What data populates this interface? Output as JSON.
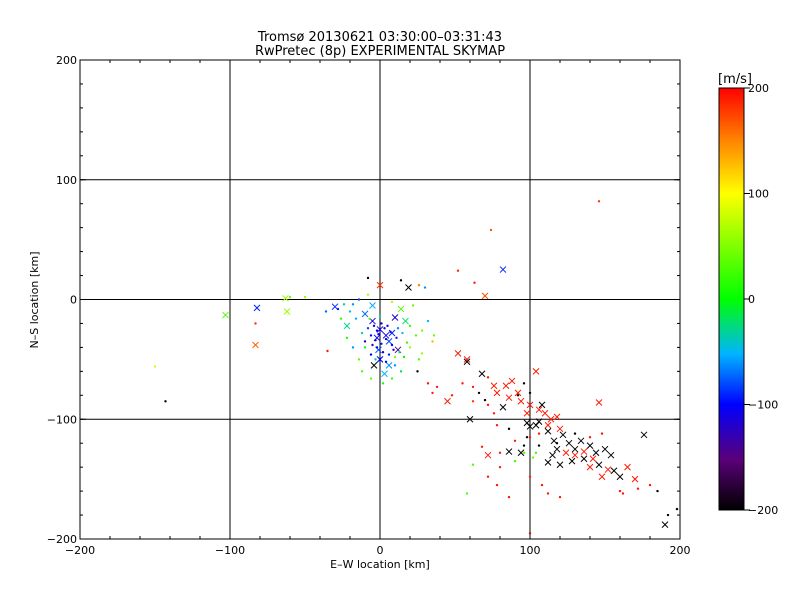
{
  "chart_data": {
    "type": "scatter",
    "title": "Tromsø 20130621 03:30:00–03:31:43",
    "subtitle": "RwPretec (8p) EXPERIMENTAL SKYMAP",
    "xlabel": "E–W location [km]",
    "ylabel": "N–S location [km]",
    "xlim": [
      -200,
      200
    ],
    "ylim": [
      -200,
      200
    ],
    "xticks": [
      -200,
      -100,
      0,
      100,
      200
    ],
    "yticks": [
      -200,
      -100,
      0,
      100,
      200
    ],
    "grid_lines": [
      -100,
      0,
      100
    ],
    "colorbar": {
      "label": "[m/s]",
      "range": [
        -200,
        200
      ],
      "ticks": [
        -200,
        -100,
        0,
        100,
        200
      ],
      "colormap": "black-purple-blue-cyan-green-yellow-red"
    },
    "markers": {
      "cross": "×",
      "dot": "·"
    },
    "points": [
      [
        146,
        82,
        180,
        "dot"
      ],
      [
        74,
        58,
        170,
        "dot"
      ],
      [
        82,
        25,
        -90,
        "cross"
      ],
      [
        52,
        24,
        180,
        "dot"
      ],
      [
        63,
        14,
        190,
        "dot"
      ],
      [
        70,
        3,
        170,
        "cross"
      ],
      [
        -8,
        18,
        -200,
        "dot"
      ],
      [
        0,
        12,
        180,
        "cross"
      ],
      [
        14,
        16,
        -200,
        "dot"
      ],
      [
        19,
        10,
        -200,
        "cross"
      ],
      [
        26,
        12,
        150,
        "dot"
      ],
      [
        30,
        10,
        -60,
        "dot"
      ],
      [
        -60,
        2,
        40,
        "dot"
      ],
      [
        -50,
        2,
        60,
        "dot"
      ],
      [
        -63,
        1,
        60,
        "cross"
      ],
      [
        -82,
        -7,
        -90,
        "cross"
      ],
      [
        -62,
        -10,
        60,
        "cross"
      ],
      [
        -103,
        -13,
        30,
        "cross"
      ],
      [
        -83,
        -20,
        180,
        "dot"
      ],
      [
        -30,
        -6,
        -90,
        "cross"
      ],
      [
        -22,
        -22,
        -30,
        "cross"
      ],
      [
        -83,
        -38,
        160,
        "cross"
      ],
      [
        -35,
        -43,
        190,
        "dot"
      ],
      [
        -150,
        -56,
        80,
        "dot"
      ],
      [
        -143,
        -85,
        -200,
        "dot"
      ],
      [
        -10,
        -12,
        -70,
        "cross"
      ],
      [
        -5,
        -5,
        -50,
        "cross"
      ],
      [
        8,
        -2,
        70,
        "dot"
      ],
      [
        14,
        -8,
        30,
        "cross"
      ],
      [
        22,
        -5,
        40,
        "dot"
      ],
      [
        17,
        -18,
        -20,
        "cross"
      ],
      [
        -5,
        -18,
        -110,
        "cross"
      ],
      [
        0,
        -25,
        -110,
        "cross"
      ],
      [
        4,
        -30,
        -110,
        "cross"
      ],
      [
        -2,
        -32,
        -100,
        "cross"
      ],
      [
        8,
        -28,
        -90,
        "cross"
      ],
      [
        10,
        -15,
        -110,
        "cross"
      ],
      [
        6,
        -35,
        -80,
        "cross"
      ],
      [
        -1,
        -42,
        -80,
        "cross"
      ],
      [
        -4,
        -55,
        -200,
        "cross"
      ],
      [
        0,
        -50,
        -100,
        "cross"
      ],
      [
        6,
        -55,
        -60,
        "cross"
      ],
      [
        3,
        -62,
        -50,
        "cross"
      ],
      [
        10,
        -48,
        50,
        "dot"
      ],
      [
        28,
        -45,
        60,
        "dot"
      ],
      [
        35,
        -35,
        130,
        "dot"
      ],
      [
        12,
        -42,
        -140,
        "cross"
      ],
      [
        -10,
        -35,
        -120,
        "dot"
      ],
      [
        -5,
        -38,
        -130,
        "dot"
      ],
      [
        2,
        -70,
        10,
        "dot"
      ],
      [
        -4,
        -22,
        -110,
        "dot"
      ],
      [
        -2,
        -26,
        -100,
        "dot"
      ],
      [
        1,
        -20,
        -110,
        "dot"
      ],
      [
        3,
        -24,
        -120,
        "dot"
      ],
      [
        5,
        -22,
        -100,
        "dot"
      ],
      [
        7,
        -27,
        -110,
        "dot"
      ],
      [
        -6,
        -30,
        -100,
        "dot"
      ],
      [
        -3,
        -34,
        -110,
        "dot"
      ],
      [
        1,
        -37,
        -90,
        "dot"
      ],
      [
        4,
        -33,
        -100,
        "dot"
      ],
      [
        8,
        -38,
        -110,
        "dot"
      ],
      [
        11,
        -32,
        -90,
        "dot"
      ],
      [
        -1,
        -29,
        -100,
        "dot"
      ],
      [
        2,
        -44,
        -110,
        "dot"
      ],
      [
        6,
        -46,
        -90,
        "dot"
      ],
      [
        -6,
        -46,
        -100,
        "dot"
      ],
      [
        12,
        -24,
        -60,
        "dot"
      ],
      [
        15,
        -28,
        -50,
        "dot"
      ],
      [
        -8,
        -24,
        -80,
        "dot"
      ],
      [
        18,
        -36,
        20,
        "dot"
      ],
      [
        -12,
        -28,
        -30,
        "dot"
      ],
      [
        0,
        -14,
        -30,
        "dot"
      ],
      [
        -2,
        -40,
        -100,
        "dot"
      ],
      [
        9,
        -42,
        -120,
        "dot"
      ],
      [
        13,
        -44,
        -20,
        "dot"
      ],
      [
        -3,
        -50,
        -40,
        "dot"
      ],
      [
        4,
        -52,
        -100,
        "dot"
      ],
      [
        10,
        -55,
        -60,
        "dot"
      ],
      [
        16,
        -48,
        0,
        "dot"
      ],
      [
        -7,
        -16,
        40,
        "dot"
      ],
      [
        20,
        -22,
        20,
        "dot"
      ],
      [
        24,
        -30,
        30,
        "dot"
      ],
      [
        -10,
        -40,
        0,
        "dot"
      ],
      [
        52,
        -45,
        190,
        "cross"
      ],
      [
        58,
        -50,
        190,
        "cross"
      ],
      [
        58,
        -52,
        -200,
        "cross"
      ],
      [
        68,
        -62,
        -200,
        "cross"
      ],
      [
        72,
        -65,
        190,
        "dot"
      ],
      [
        76,
        -72,
        190,
        "cross"
      ],
      [
        84,
        -72,
        190,
        "cross"
      ],
      [
        78,
        -78,
        190,
        "cross"
      ],
      [
        88,
        -68,
        190,
        "cross"
      ],
      [
        92,
        -78,
        190,
        "cross"
      ],
      [
        86,
        -82,
        190,
        "cross"
      ],
      [
        94,
        -85,
        190,
        "cross"
      ],
      [
        100,
        -88,
        190,
        "cross"
      ],
      [
        104,
        -60,
        190,
        "cross"
      ],
      [
        106,
        -92,
        190,
        "cross"
      ],
      [
        98,
        -95,
        190,
        "cross"
      ],
      [
        110,
        -95,
        190,
        "cross"
      ],
      [
        114,
        -100,
        190,
        "cross"
      ],
      [
        118,
        -98,
        190,
        "cross"
      ],
      [
        112,
        -105,
        190,
        "cross"
      ],
      [
        120,
        -108,
        190,
        "cross"
      ],
      [
        96,
        -70,
        -200,
        "dot"
      ],
      [
        100,
        -78,
        -200,
        "dot"
      ],
      [
        108,
        -88,
        -200,
        "cross"
      ],
      [
        106,
        -102,
        -200,
        "cross"
      ],
      [
        98,
        -103,
        -200,
        "cross"
      ],
      [
        100,
        -106,
        -200,
        "cross"
      ],
      [
        104,
        -105,
        -200,
        "cross"
      ],
      [
        92,
        -80,
        -200,
        "dot"
      ],
      [
        82,
        -90,
        -200,
        "cross"
      ],
      [
        60,
        -100,
        -200,
        "cross"
      ],
      [
        76,
        -95,
        190,
        "dot"
      ],
      [
        62,
        -85,
        180,
        "dot"
      ],
      [
        45,
        -85,
        190,
        "cross"
      ],
      [
        48,
        -80,
        190,
        "dot"
      ],
      [
        32,
        -70,
        190,
        "dot"
      ],
      [
        35,
        -78,
        190,
        "dot"
      ],
      [
        38,
        -73,
        190,
        "dot"
      ],
      [
        25,
        -60,
        -200,
        "dot"
      ],
      [
        55,
        -70,
        190,
        "dot"
      ],
      [
        62,
        -73,
        190,
        "dot"
      ],
      [
        66,
        -78,
        -200,
        "dot"
      ],
      [
        70,
        -84,
        -200,
        "dot"
      ],
      [
        72,
        -88,
        190,
        "dot"
      ],
      [
        78,
        -105,
        190,
        "dot"
      ],
      [
        86,
        -108,
        -200,
        "dot"
      ],
      [
        112,
        -110,
        -200,
        "cross"
      ],
      [
        116,
        -118,
        -200,
        "cross"
      ],
      [
        122,
        -113,
        -200,
        "cross"
      ],
      [
        126,
        -120,
        -200,
        "cross"
      ],
      [
        130,
        -125,
        -200,
        "cross"
      ],
      [
        134,
        -118,
        -200,
        "cross"
      ],
      [
        140,
        -122,
        -200,
        "cross"
      ],
      [
        144,
        -128,
        -200,
        "cross"
      ],
      [
        150,
        -125,
        -200,
        "cross"
      ],
      [
        154,
        -130,
        -200,
        "cross"
      ],
      [
        136,
        -133,
        -200,
        "cross"
      ],
      [
        128,
        -135,
        -200,
        "cross"
      ],
      [
        120,
        -138,
        -200,
        "cross"
      ],
      [
        112,
        -136,
        -200,
        "cross"
      ],
      [
        118,
        -125,
        -200,
        "cross"
      ],
      [
        146,
        -138,
        -200,
        "cross"
      ],
      [
        156,
        -143,
        -200,
        "cross"
      ],
      [
        160,
        -148,
        -200,
        "cross"
      ],
      [
        176,
        -113,
        -200,
        "cross"
      ],
      [
        140,
        -140,
        190,
        "cross"
      ],
      [
        148,
        -148,
        190,
        "cross"
      ],
      [
        152,
        -142,
        190,
        "cross"
      ],
      [
        165,
        -140,
        190,
        "cross"
      ],
      [
        170,
        -150,
        190,
        "cross"
      ],
      [
        180,
        -155,
        190,
        "dot"
      ],
      [
        172,
        -158,
        190,
        "dot"
      ],
      [
        185,
        -160,
        -200,
        "dot"
      ],
      [
        160,
        -160,
        190,
        "dot"
      ],
      [
        162,
        -162,
        190,
        "dot"
      ],
      [
        130,
        -130,
        190,
        "cross"
      ],
      [
        124,
        -128,
        190,
        "cross"
      ],
      [
        136,
        -127,
        190,
        "cross"
      ],
      [
        142,
        -133,
        190,
        "cross"
      ],
      [
        100,
        -115,
        190,
        "dot"
      ],
      [
        106,
        -112,
        190,
        "dot"
      ],
      [
        90,
        -118,
        190,
        "dot"
      ],
      [
        96,
        -122,
        -200,
        "dot"
      ],
      [
        80,
        -128,
        190,
        "dot"
      ],
      [
        86,
        -127,
        -200,
        "cross"
      ],
      [
        94,
        -128,
        -200,
        "cross"
      ],
      [
        72,
        -130,
        190,
        "cross"
      ],
      [
        68,
        -123,
        190,
        "dot"
      ],
      [
        80,
        -140,
        190,
        "dot"
      ],
      [
        78,
        -155,
        190,
        "dot"
      ],
      [
        86,
        -165,
        190,
        "dot"
      ],
      [
        100,
        -148,
        190,
        "dot"
      ],
      [
        108,
        -155,
        190,
        "dot"
      ],
      [
        112,
        -162,
        190,
        "dot"
      ],
      [
        120,
        -165,
        190,
        "dot"
      ],
      [
        100,
        -195,
        190,
        "dot"
      ],
      [
        146,
        -86,
        190,
        "cross"
      ],
      [
        140,
        -115,
        190,
        "dot"
      ],
      [
        148,
        -112,
        190,
        "dot"
      ],
      [
        130,
        -112,
        -200,
        "dot"
      ],
      [
        118,
        -120,
        -200,
        "dot"
      ],
      [
        106,
        -122,
        -200,
        "dot"
      ],
      [
        98,
        -115,
        -200,
        "dot"
      ],
      [
        104,
        -128,
        20,
        "dot"
      ],
      [
        96,
        -128,
        30,
        "dot"
      ],
      [
        90,
        -135,
        20,
        "dot"
      ],
      [
        102,
        -132,
        40,
        "dot"
      ],
      [
        58,
        -162,
        30,
        "dot"
      ],
      [
        62,
        -138,
        30,
        "dot"
      ],
      [
        72,
        -148,
        190,
        "dot"
      ],
      [
        115,
        -130,
        -200,
        "cross"
      ],
      [
        190,
        -188,
        -200,
        "cross"
      ],
      [
        198,
        -175,
        -200,
        "dot"
      ],
      [
        192,
        -180,
        -200,
        "dot"
      ],
      [
        -18,
        -4,
        -60,
        "dot"
      ],
      [
        -14,
        0,
        -80,
        "dot"
      ],
      [
        -8,
        4,
        70,
        "dot"
      ],
      [
        -20,
        -10,
        -40,
        "dot"
      ],
      [
        -26,
        -16,
        20,
        "dot"
      ],
      [
        -16,
        -16,
        -50,
        "dot"
      ],
      [
        -28,
        -8,
        -90,
        "dot"
      ],
      [
        -36,
        -10,
        -70,
        "dot"
      ],
      [
        -24,
        -4,
        -30,
        "dot"
      ],
      [
        28,
        -26,
        50,
        "dot"
      ],
      [
        32,
        -18,
        -50,
        "dot"
      ],
      [
        36,
        -30,
        40,
        "dot"
      ],
      [
        20,
        -40,
        60,
        "dot"
      ],
      [
        26,
        -50,
        30,
        "dot"
      ],
      [
        14,
        -60,
        -20,
        "dot"
      ],
      [
        -14,
        -50,
        40,
        "dot"
      ],
      [
        -18,
        -40,
        -60,
        "dot"
      ],
      [
        -22,
        -32,
        10,
        "dot"
      ],
      [
        -12,
        -60,
        30,
        "dot"
      ],
      [
        -6,
        -66,
        40,
        "dot"
      ],
      [
        8,
        -66,
        20,
        "dot"
      ]
    ]
  }
}
